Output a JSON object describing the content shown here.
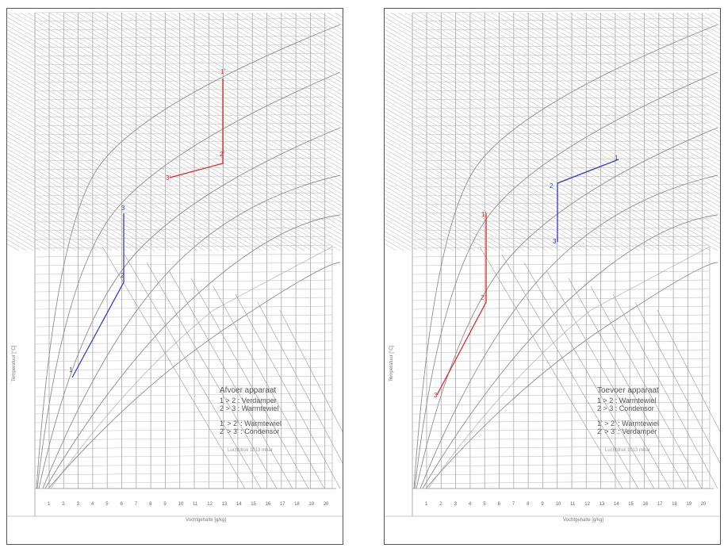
{
  "panels": [
    {
      "legend": {
        "title": "Afvoer apparaat",
        "lines": [
          "1 > 2 : Verdamper",
          "2 > 3 : Warmtewiel"
        ],
        "lines2": [
          "1' > 2' : Warmtewiel",
          "2' > 3' : Condensor"
        ],
        "footer": "Luchtdruk 1013 mbar"
      },
      "axis": {
        "xlabel": "Vochtgehalte [g/kg]",
        "ylabel": "Temperatuur [°C]",
        "x_ticks": [
          "1",
          "2",
          "3",
          "4",
          "5",
          "6",
          "7",
          "8",
          "9",
          "10",
          "11",
          "12",
          "13",
          "14",
          "15",
          "16",
          "17",
          "18",
          "19",
          "20"
        ]
      },
      "process": {
        "red": {
          "points": [
            "3'",
            "2'",
            "1'"
          ],
          "color": "#e02a2a"
        },
        "blue": {
          "points": [
            "1",
            "2",
            "3"
          ],
          "color": "#3a3ad0"
        }
      }
    },
    {
      "legend": {
        "title": "Toevoer apparaat",
        "lines": [
          "1 > 2 : Warmtewiel",
          "2 > 3 : Condensor"
        ],
        "lines2": [
          "1' > 2' : Warmtewiel",
          "2' > 3' : Verdamper"
        ],
        "footer": "Luchtdruk 1013 mbar"
      },
      "axis": {
        "xlabel": "Vochtgehalte [g/kg]",
        "ylabel": "Temperatuur [°C]",
        "x_ticks": [
          "1",
          "2",
          "3",
          "4",
          "5",
          "6",
          "7",
          "8",
          "9",
          "10",
          "11",
          "12",
          "13",
          "14",
          "15",
          "16",
          "17",
          "18",
          "19",
          "20"
        ]
      },
      "process": {
        "red": {
          "points": [
            "3'",
            "2'",
            "1'"
          ],
          "color": "#e02a2a"
        },
        "blue": {
          "points": [
            "3",
            "2",
            "1"
          ],
          "color": "#3a3ad0"
        }
      }
    }
  ]
}
